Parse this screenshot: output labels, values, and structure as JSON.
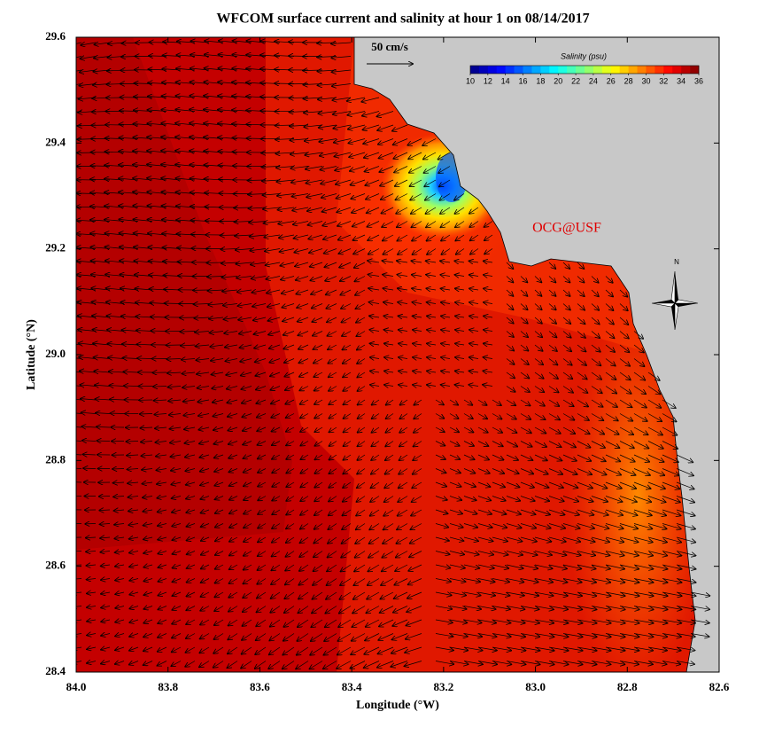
{
  "chart_data": {
    "type": "map",
    "title": "WFCOM surface current and salinity at hour 1 on 08/14/2017",
    "x_label": "Longitude (°W)",
    "y_label": "Latitude (°N)",
    "xlim": [
      84,
      82.6
    ],
    "ylim": [
      28.4,
      29.6
    ],
    "xticks": [
      {
        "value": 84,
        "label": "84.0"
      },
      83.8,
      83.6,
      83.4,
      83.2,
      {
        "value": 83,
        "label": "83.0"
      },
      82.8,
      82.6
    ],
    "yticks": [
      28.4,
      28.6,
      28.8,
      {
        "value": 29,
        "label": "29.0"
      },
      29.2,
      29.4,
      29.6
    ],
    "colorbar": {
      "title": "Salinity (psu)",
      "clim": [
        10,
        36
      ],
      "ticks": [
        10,
        12,
        14,
        16,
        18,
        20,
        22,
        24,
        26,
        28,
        30,
        32,
        34,
        36
      ]
    },
    "scale_label": "50 cm/s",
    "credit": "OCG@USF",
    "north_label": "N"
  }
}
